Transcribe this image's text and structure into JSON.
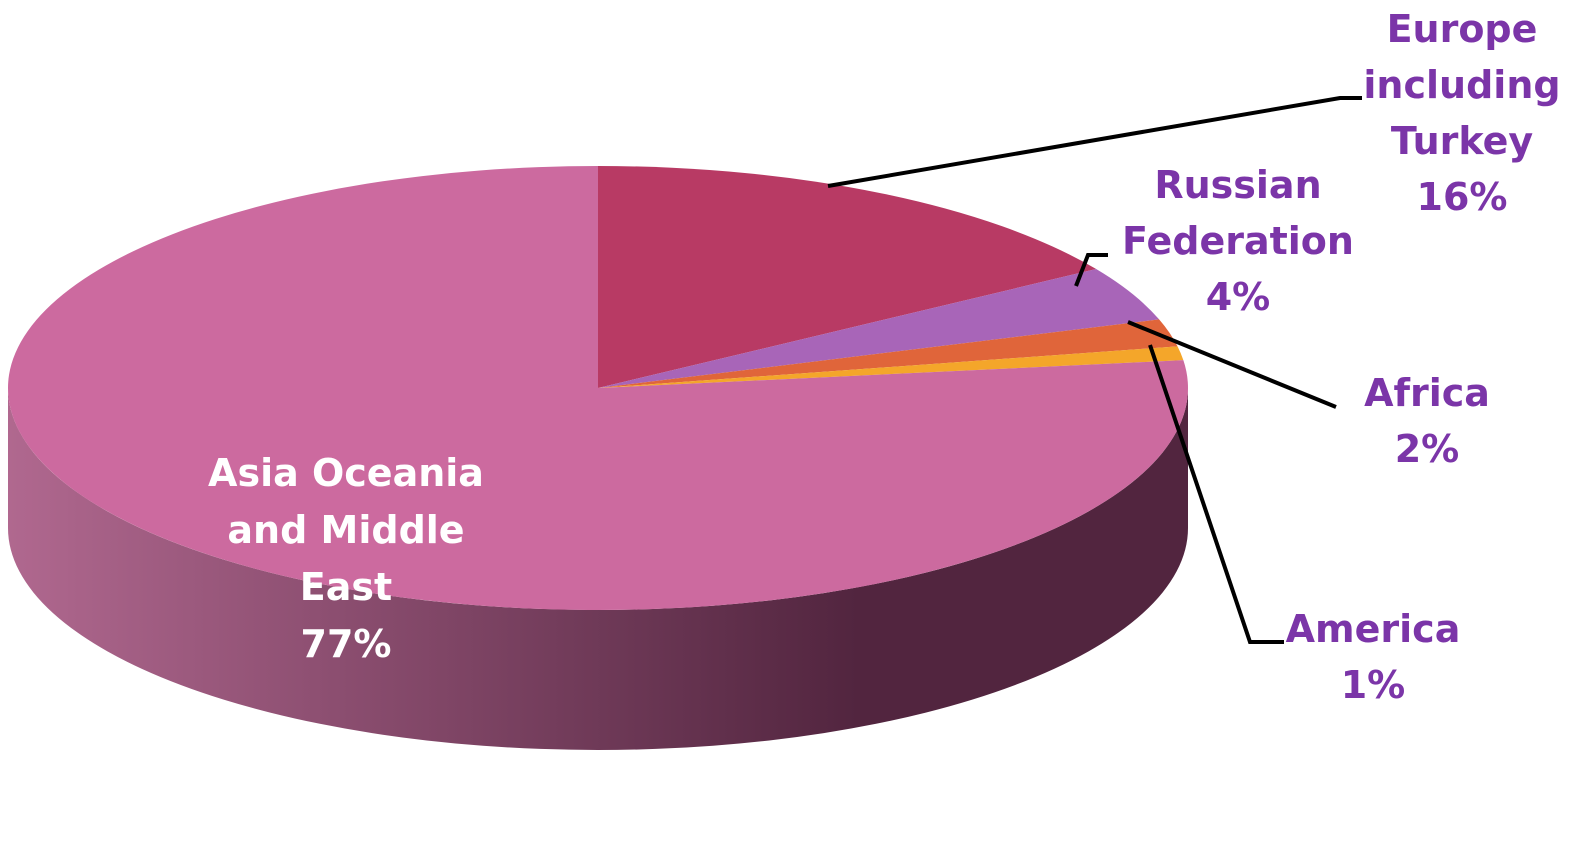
{
  "chart_data": {
    "type": "pie",
    "style": "3d",
    "start": "top",
    "direction": "clockwise",
    "series": [
      {
        "name": "Europe including Turkey",
        "label_lines": [
          "Europe",
          "including",
          "Turkey"
        ],
        "value": 16,
        "value_label": "16%",
        "color": "#b83a64",
        "label_color": "#7b35a8"
      },
      {
        "name": "Russian Federation",
        "label_lines": [
          "Russian",
          "Federation"
        ],
        "value": 4,
        "value_label": "4%",
        "color": "#a865b8",
        "label_color": "#7b35a8"
      },
      {
        "name": "Africa",
        "label_lines": [
          "Africa"
        ],
        "value": 2,
        "value_label": "2%",
        "color": "#e0653a",
        "label_color": "#7b35a8"
      },
      {
        "name": "America",
        "label_lines": [
          "America"
        ],
        "value": 1,
        "value_label": "1%",
        "color": "#f4a62a",
        "label_color": "#7b35a8"
      },
      {
        "name": "Asia Oceania and Middle East",
        "label_lines": [
          "Asia Oceania",
          "and Middle",
          "East"
        ],
        "value": 77,
        "value_label": "77%",
        "color": "#cc6a9f",
        "label_color": "#ffffff"
      }
    ]
  },
  "colors": {
    "side_dark": "#52253f",
    "side_light": "#b0688f",
    "leader_line": "#000000"
  }
}
